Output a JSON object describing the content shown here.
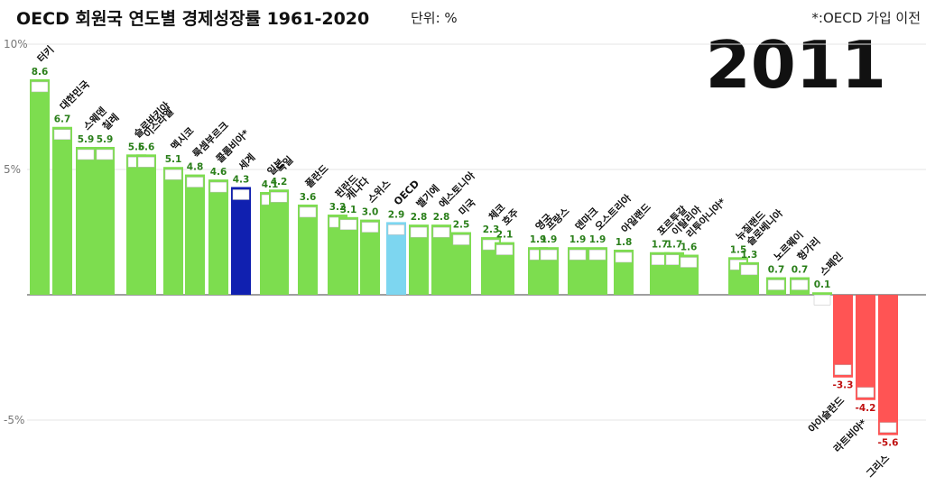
{
  "header": {
    "title": "OECD 회원국 연도별 경제성장률 1961-2020",
    "unit": "단위: %",
    "note": "*:OECD 가입 이전",
    "year": "2011"
  },
  "colors": {
    "positive": "#7ddd4f",
    "negative": "#ff5454",
    "world": "#1020b0",
    "oecd": "#7dd6f0",
    "grid": "#e4e4e4",
    "axis": "#666666",
    "value_label_positive": "#2a7f1a",
    "value_label_negative": "#c01010"
  },
  "chart_data": {
    "type": "bar",
    "title": "OECD 회원국 연도별 경제성장률 1961-2020",
    "xlabel": "",
    "ylabel": "",
    "ylim": [
      -7,
      10
    ],
    "yticks": [
      -5,
      5,
      10
    ],
    "ytick_labels": [
      "-5%",
      "5%",
      "10%"
    ],
    "grid": true,
    "categories": [
      "터키",
      "대한민국",
      "스웨덴",
      "칠레",
      "슬로바키아",
      "이스라엘",
      "멕시코",
      "룩셈부르크",
      "콜롬비아*",
      "세계",
      "일본",
      "독일",
      "폴란드",
      "핀란드",
      "캐나다",
      "스위스",
      "OECD",
      "벨기에",
      "에스토니아",
      "미국",
      "체코",
      "호주",
      "영국",
      "프랑스",
      "덴마크",
      "오스트리아",
      "아일랜드",
      "포르투갈",
      "이탈리아",
      "리투아니아*",
      "뉴질랜드",
      "슬로베니아",
      "노르웨이",
      "헝가리",
      "스페인",
      "아이슬란드",
      "라트비아*",
      "그리스"
    ],
    "values": [
      8.6,
      6.7,
      5.9,
      5.9,
      5.6,
      5.6,
      5.1,
      4.8,
      4.6,
      4.3,
      4.1,
      4.2,
      3.6,
      3.2,
      3.1,
      3.0,
      2.9,
      2.8,
      2.8,
      2.5,
      2.3,
      2.1,
      1.9,
      1.9,
      1.9,
      1.9,
      1.8,
      1.7,
      1.7,
      1.6,
      1.5,
      1.3,
      0.7,
      0.7,
      0.1,
      -3.3,
      -4.2,
      -5.6
    ],
    "value_labels": [
      "8.6",
      "6.7",
      "5.9",
      "5.9",
      "5.6",
      "5.6",
      "5.1",
      "4.8",
      "4.6",
      "4.3",
      "4.1",
      "4.2",
      "3.6",
      "3.2",
      "3.1",
      "3.0",
      "2.9",
      "2.8",
      "2.8",
      "2.5",
      "2.3",
      "2.1",
      "1.9",
      "1.9",
      "1.9",
      "1.9",
      "1.8",
      "1.7",
      "1.7",
      "1.6",
      "1.5",
      "1.3",
      "0.7",
      "0.7",
      "0.1",
      "-3.3",
      "-4.2",
      "-5.6"
    ],
    "highlight": {
      "세계": "world",
      "OECD": "oecd"
    }
  }
}
